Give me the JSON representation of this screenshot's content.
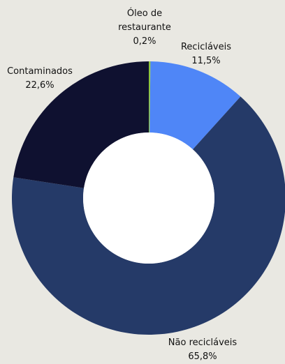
{
  "chart_data": {
    "type": "donut",
    "categories": [
      "Óleo de restaurante",
      "Recicláveis",
      "Não recicláveis",
      "Contaminados"
    ],
    "values": [
      0.2,
      11.5,
      65.8,
      22.6
    ],
    "value_labels": [
      "0,2%",
      "11,5%",
      "65,8%",
      "22,6%"
    ],
    "colors": [
      "#8dc63f",
      "#4f86f7",
      "#253a68",
      "#0f1130"
    ]
  }
}
